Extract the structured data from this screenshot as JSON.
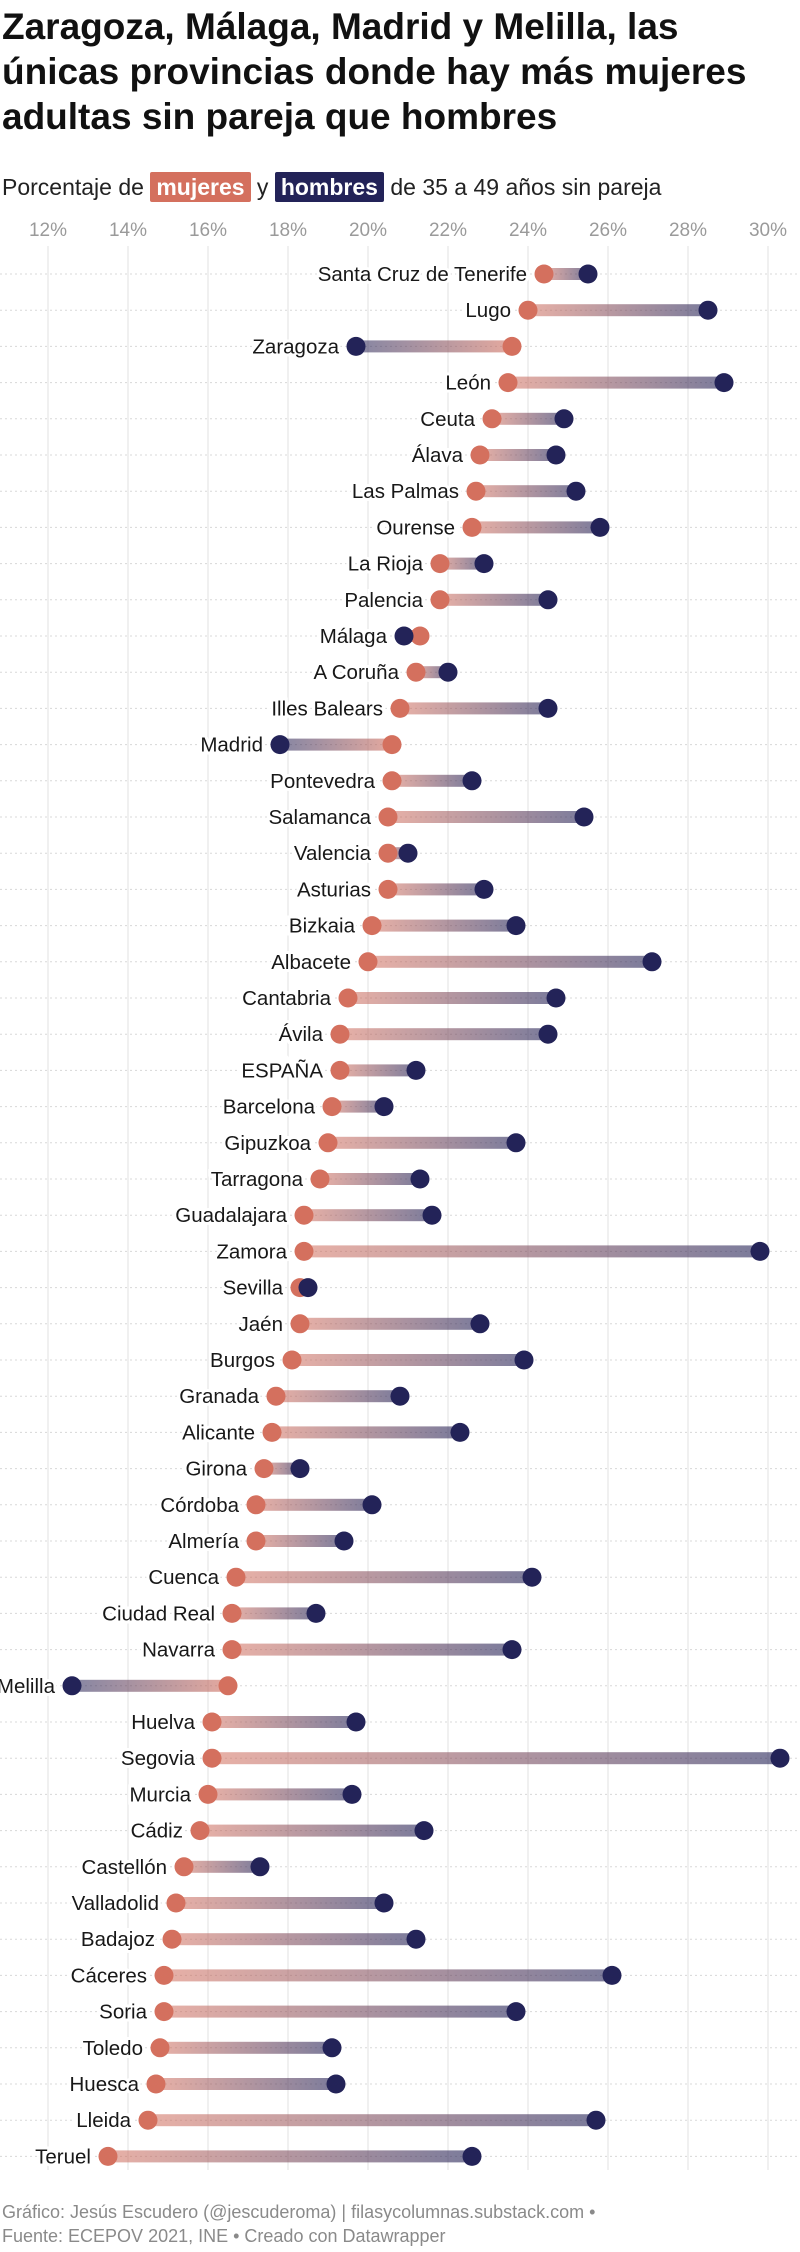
{
  "title": "Zaragoza, Málaga, Madrid y Melilla, las únicas provincias donde hay más mujeres adultas sin pareja que hombres",
  "subtitle": {
    "prefix": "Porcentaje de ",
    "women_label": "mujeres",
    "connector": " y ",
    "men_label": "hombres",
    "suffix": " de 35 a 49 años sin pareja"
  },
  "colors": {
    "women": "#d4705e",
    "men": "#232358",
    "grid": "#e2e2e2",
    "row_rule": "#d8d8d8",
    "tick_text": "#9a9a9a"
  },
  "footer": {
    "line1": "Gráfico: Jesús Escudero (@jescuderoma) | filasycolumnas.substack.com •",
    "line2": "Fuente: ECEPOV 2021, INE • Creado con Datawrapper"
  },
  "chart_data": {
    "type": "dumbbell",
    "xlim": [
      10.8,
      30.8
    ],
    "ticks": [
      12,
      14,
      16,
      18,
      20,
      22,
      24,
      26,
      28,
      30
    ],
    "tick_labels": [
      "12%",
      "14%",
      "16%",
      "18%",
      "20%",
      "22%",
      "24%",
      "26%",
      "28%",
      "30%"
    ],
    "grid": true,
    "series": [
      {
        "name": "mujeres"
      },
      {
        "name": "hombres"
      }
    ],
    "rows": [
      {
        "label": "Santa Cruz de Tenerife",
        "mujeres": 24.4,
        "hombres": 25.5
      },
      {
        "label": "Lugo",
        "mujeres": 24.0,
        "hombres": 28.5
      },
      {
        "label": "Zaragoza",
        "mujeres": 23.6,
        "hombres": 19.7
      },
      {
        "label": "León",
        "mujeres": 23.5,
        "hombres": 28.9
      },
      {
        "label": "Ceuta",
        "mujeres": 23.1,
        "hombres": 24.9
      },
      {
        "label": "Álava",
        "mujeres": 22.8,
        "hombres": 24.7
      },
      {
        "label": "Las Palmas",
        "mujeres": 22.7,
        "hombres": 25.2
      },
      {
        "label": "Ourense",
        "mujeres": 22.6,
        "hombres": 25.8
      },
      {
        "label": "La Rioja",
        "mujeres": 21.8,
        "hombres": 22.9
      },
      {
        "label": "Palencia",
        "mujeres": 21.8,
        "hombres": 24.5
      },
      {
        "label": "Málaga",
        "mujeres": 21.3,
        "hombres": 20.9
      },
      {
        "label": "A Coruña",
        "mujeres": 21.2,
        "hombres": 22.0
      },
      {
        "label": "Illes Balears",
        "mujeres": 20.8,
        "hombres": 24.5
      },
      {
        "label": "Madrid",
        "mujeres": 20.6,
        "hombres": 17.8
      },
      {
        "label": "Pontevedra",
        "mujeres": 20.6,
        "hombres": 22.6
      },
      {
        "label": "Salamanca",
        "mujeres": 20.5,
        "hombres": 25.4
      },
      {
        "label": "Valencia",
        "mujeres": 20.5,
        "hombres": 21.0
      },
      {
        "label": "Asturias",
        "mujeres": 20.5,
        "hombres": 22.9
      },
      {
        "label": "Bizkaia",
        "mujeres": 20.1,
        "hombres": 23.7
      },
      {
        "label": "Albacete",
        "mujeres": 20.0,
        "hombres": 27.1
      },
      {
        "label": "Cantabria",
        "mujeres": 19.5,
        "hombres": 24.7
      },
      {
        "label": "Ávila",
        "mujeres": 19.3,
        "hombres": 24.5
      },
      {
        "label": "ESPAÑA",
        "mujeres": 19.3,
        "hombres": 21.2
      },
      {
        "label": "Barcelona",
        "mujeres": 19.1,
        "hombres": 20.4
      },
      {
        "label": "Gipuzkoa",
        "mujeres": 19.0,
        "hombres": 23.7
      },
      {
        "label": "Tarragona",
        "mujeres": 18.8,
        "hombres": 21.3
      },
      {
        "label": "Guadalajara",
        "mujeres": 18.4,
        "hombres": 21.6
      },
      {
        "label": "Zamora",
        "mujeres": 18.4,
        "hombres": 29.8
      },
      {
        "label": "Sevilla",
        "mujeres": 18.3,
        "hombres": 18.5
      },
      {
        "label": "Jaén",
        "mujeres": 18.3,
        "hombres": 22.8
      },
      {
        "label": "Burgos",
        "mujeres": 18.1,
        "hombres": 23.9
      },
      {
        "label": "Granada",
        "mujeres": 17.7,
        "hombres": 20.8
      },
      {
        "label": "Alicante",
        "mujeres": 17.6,
        "hombres": 22.3
      },
      {
        "label": "Girona",
        "mujeres": 17.4,
        "hombres": 18.3
      },
      {
        "label": "Córdoba",
        "mujeres": 17.2,
        "hombres": 20.1
      },
      {
        "label": "Almería",
        "mujeres": 17.2,
        "hombres": 19.4
      },
      {
        "label": "Cuenca",
        "mujeres": 16.7,
        "hombres": 24.1
      },
      {
        "label": "Ciudad Real",
        "mujeres": 16.6,
        "hombres": 18.7
      },
      {
        "label": "Navarra",
        "mujeres": 16.6,
        "hombres": 23.6
      },
      {
        "label": "Melilla",
        "mujeres": 16.5,
        "hombres": 12.6
      },
      {
        "label": "Huelva",
        "mujeres": 16.1,
        "hombres": 19.7
      },
      {
        "label": "Segovia",
        "mujeres": 16.1,
        "hombres": 30.3
      },
      {
        "label": "Murcia",
        "mujeres": 16.0,
        "hombres": 19.6
      },
      {
        "label": "Cádiz",
        "mujeres": 15.8,
        "hombres": 21.4
      },
      {
        "label": "Castellón",
        "mujeres": 15.4,
        "hombres": 17.3
      },
      {
        "label": "Valladolid",
        "mujeres": 15.2,
        "hombres": 20.4
      },
      {
        "label": "Badajoz",
        "mujeres": 15.1,
        "hombres": 21.2
      },
      {
        "label": "Cáceres",
        "mujeres": 14.9,
        "hombres": 26.1
      },
      {
        "label": "Soria",
        "mujeres": 14.9,
        "hombres": 23.7
      },
      {
        "label": "Toledo",
        "mujeres": 14.8,
        "hombres": 19.1
      },
      {
        "label": "Huesca",
        "mujeres": 14.7,
        "hombres": 19.2
      },
      {
        "label": "Lleida",
        "mujeres": 14.5,
        "hombres": 25.7
      },
      {
        "label": "Teruel",
        "mujeres": 13.5,
        "hombres": 22.6
      }
    ]
  }
}
